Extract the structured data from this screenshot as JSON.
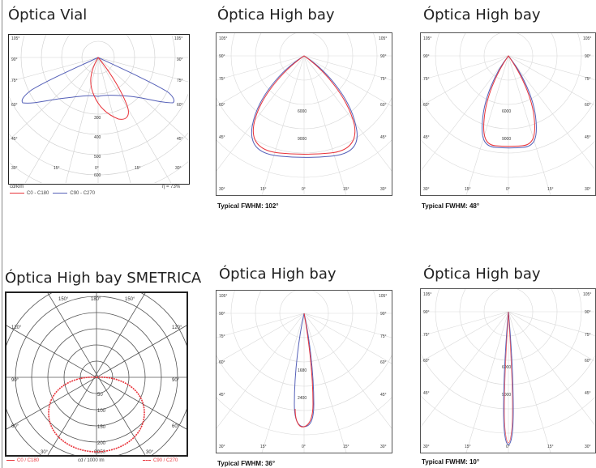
{
  "panels": [
    {
      "title": "Óptica Vial",
      "angles_side": [
        "105°",
        "90°",
        "75°",
        "60°",
        "45°",
        "30°"
      ],
      "angles_bottom": [
        "30°",
        "15°",
        "0°",
        "15°",
        "30°"
      ],
      "radial_values": [
        "300",
        "400",
        "500",
        "600"
      ],
      "unit": "cd/klm",
      "efficiency": "η = 73%",
      "legend": [
        "C0 - C180",
        "C90 - C270"
      ],
      "colors": {
        "c0": "#e8333a",
        "c90": "#5560b8"
      }
    },
    {
      "title": "Óptica High bay",
      "caption": "Typical FWHM: 102°",
      "angles_side": [
        "105°",
        "90°",
        "75°",
        "60°",
        "45°",
        "30°"
      ],
      "angles_bottom": [
        "30°",
        "15°",
        "0°",
        "15°",
        "30°"
      ],
      "radial_values": [
        "6000",
        "9000"
      ]
    },
    {
      "title": "Óptica High bay",
      "caption": "Typical FWHM: 48°",
      "angles_side": [
        "105°",
        "90°",
        "75°",
        "60°",
        "45°",
        "30°"
      ],
      "angles_bottom": [
        "30°",
        "15°",
        "0°",
        "15°",
        "30°"
      ],
      "radial_values": [
        "6000",
        "9000"
      ]
    },
    {
      "title": "Óptica High bay SMETRICA",
      "angles": [
        "150°",
        "180°",
        "150°",
        "120°",
        "120°",
        "90°",
        "90°",
        "60°",
        "60°",
        "30°",
        "0°",
        "30°"
      ],
      "radial_values": [
        "50",
        "100",
        "150",
        "200",
        "250"
      ],
      "unit": "cd / 1000 lm",
      "legend": [
        "C0 / C180",
        "C90 / C270"
      ]
    },
    {
      "title": "Óptica High bay",
      "caption": "Typical FWHM: 36°",
      "angles_side": [
        "105°",
        "90°",
        "75°",
        "60°",
        "45°",
        "30°"
      ],
      "angles_bottom": [
        "30°",
        "15°",
        "0°",
        "15°",
        "30°"
      ],
      "radial_values": [
        "1680",
        "2400"
      ]
    },
    {
      "title": "Óptica High bay",
      "caption": "Typical FWHM: 10°",
      "angles_side": [
        "105°",
        "90°",
        "75°",
        "60°",
        "45°",
        "30°"
      ],
      "angles_bottom": [
        "30°",
        "15°",
        "0°",
        "15°",
        "30°"
      ],
      "radial_values": [
        "6000",
        "9000"
      ]
    }
  ]
}
